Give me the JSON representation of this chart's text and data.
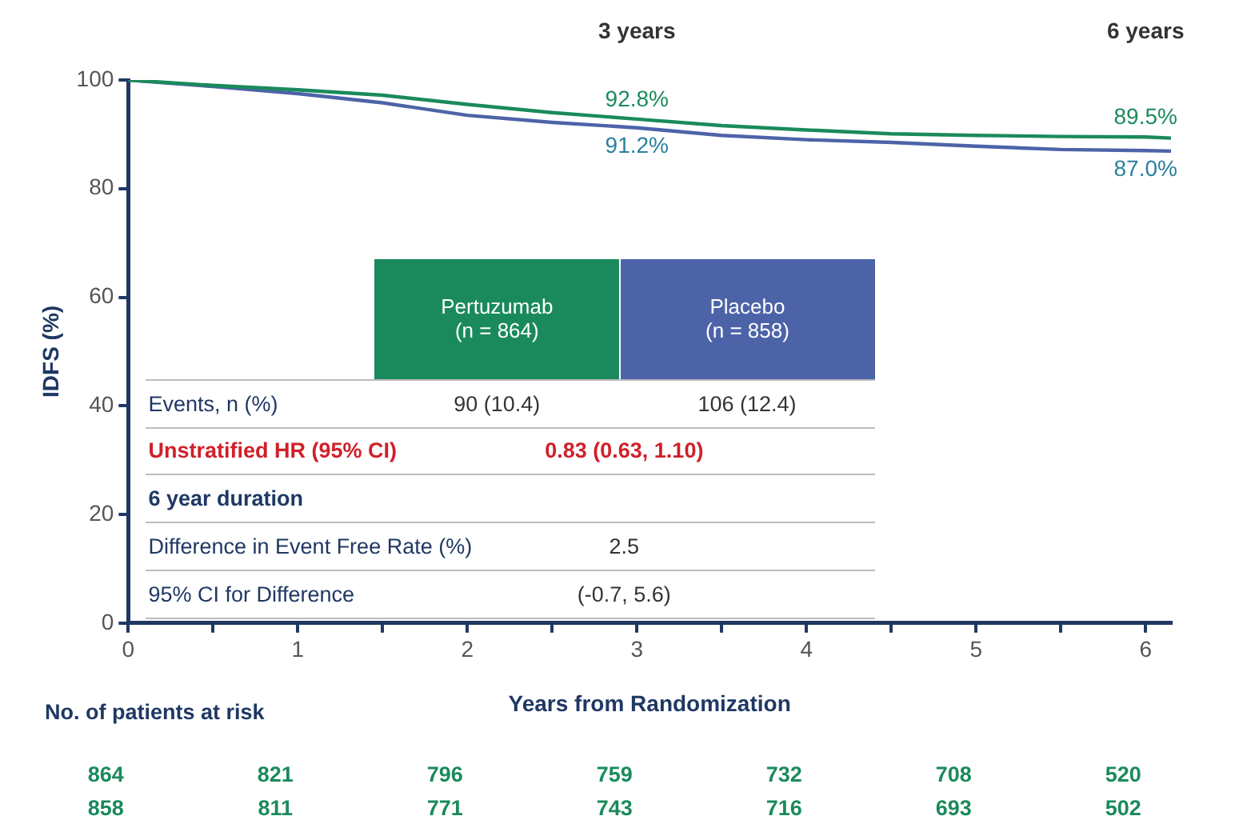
{
  "chart_data": {
    "type": "line",
    "xlabel": "Years from Randomization",
    "ylabel": "IDFS (%)",
    "xlim": [
      0,
      6.15
    ],
    "xticks": [
      0,
      {
        "value": 0.5,
        "label": null
      },
      1,
      {
        "value": 1.5,
        "label": null
      },
      2,
      {
        "value": 2.5,
        "label": null
      },
      3,
      {
        "value": 3.5,
        "label": null
      },
      4,
      {
        "value": 4.5,
        "label": null
      },
      5,
      {
        "value": 5.5,
        "label": null
      },
      6
    ],
    "ylim": [
      0,
      100
    ],
    "yticks": [
      0,
      20,
      40,
      60,
      80,
      100
    ],
    "grid": false,
    "legend": false,
    "marker": "none",
    "line_style": "solid",
    "series": [
      {
        "color": "#1a8a5c",
        "x": [
          0,
          0.5,
          1,
          1.5,
          2,
          2.5,
          3,
          3.5,
          4,
          4.5,
          5,
          5.5,
          6,
          6.15
        ],
        "values": [
          100,
          99,
          98.2,
          97.2,
          95.5,
          94,
          92.8,
          91.6,
          90.8,
          90.1,
          89.8,
          89.6,
          89.5,
          89.3
        ],
        "value_labels": [
          null,
          null,
          null,
          null,
          null,
          null,
          "92.8%",
          null,
          null,
          null,
          null,
          null,
          "89.5%",
          null
        ]
      },
      {
        "color": "#4d63a8",
        "x": [
          0,
          0.5,
          1,
          1.5,
          2,
          2.5,
          3,
          3.5,
          4,
          4.5,
          5,
          5.5,
          6,
          6.15
        ],
        "values": [
          100,
          98.8,
          97.5,
          95.8,
          93.5,
          92.2,
          91.2,
          89.8,
          89,
          88.5,
          87.8,
          87.2,
          87,
          86.9
        ],
        "value_labels": [
          null,
          null,
          null,
          null,
          null,
          null,
          "91.2%",
          null,
          null,
          null,
          null,
          null,
          "87.0%",
          null
        ]
      }
    ],
    "annotations": [
      "3 years",
      "6 years",
      "(n = 864)",
      "(n = 858)",
      "Events, n (%)",
      "90 (10.4)",
      "106 (12.4)",
      "Unstratified HR (95% CI)",
      "0.83 (0.63, 1.10)",
      "6 year duration",
      "Difference in Event Free Rate (%)",
      "2.5",
      "95% CI for Difference",
      "(-0.7, 5.6)",
      "No. of patients at risk",
      "864",
      "821",
      "796",
      "759",
      "732",
      "708",
      "520",
      "858",
      "811",
      "771",
      "743",
      "716",
      "693",
      "502",
      "Pertuzumab",
      "Placebo"
    ]
  }
}
